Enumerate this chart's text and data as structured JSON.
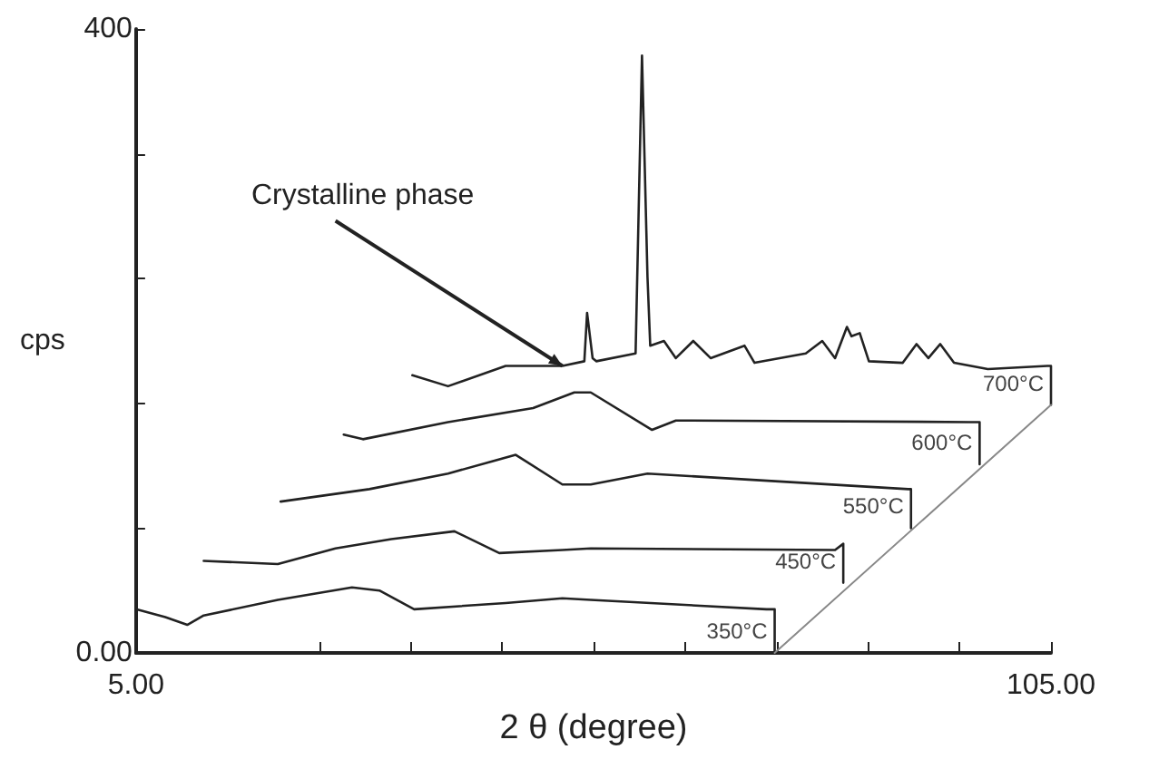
{
  "chart_data": {
    "type": "line",
    "xlabel": "2 θ (degree)",
    "ylabel": "cps",
    "xlim": [
      5,
      105
    ],
    "ylim": [
      0,
      400
    ],
    "xticks": [
      {
        "value": 5,
        "label": "5.00"
      },
      {
        "value": 25,
        "label": null
      },
      {
        "value": 35,
        "label": null
      },
      {
        "value": 45,
        "label": null
      },
      {
        "value": 55,
        "label": null
      },
      {
        "value": 65,
        "label": null
      },
      {
        "value": 75,
        "label": null
      },
      {
        "value": 85,
        "label": null
      },
      {
        "value": 95,
        "label": null
      },
      {
        "value": 105,
        "label": "105.00"
      }
    ],
    "yticks": [
      {
        "value": 0,
        "label": "0.00"
      },
      {
        "value": 80,
        "label": null
      },
      {
        "value": 160,
        "label": null
      },
      {
        "value": 240,
        "label": null
      },
      {
        "value": 320,
        "label": null
      },
      {
        "value": 400,
        "label": "400"
      }
    ],
    "grid": false,
    "legend": false,
    "marker": "none",
    "line_style": "solid",
    "series": [
      {
        "name": "350°C",
        "color": "#222222",
        "x": [
          5,
          8.2,
          10.6,
          12.4,
          20.5,
          28.6,
          31.6,
          35.4,
          45.4,
          51.6,
          54.7,
          73.9,
          74.8,
          74.8
        ],
        "values": [
          28,
          23,
          18,
          24,
          34,
          42,
          40,
          28,
          32,
          35,
          34,
          28,
          28,
          0
        ]
      },
      {
        "name": "450°C",
        "color": "#222222",
        "x": [
          12.4,
          20.5,
          26.8,
          32.9,
          39.8,
          44.7,
          51.6,
          54.7,
          81.4,
          82.3,
          82.3
        ],
        "values": [
          59,
          57,
          67,
          73,
          78,
          64,
          66,
          67,
          66,
          70,
          45
        ]
      },
      {
        "name": "550°C",
        "color": "#222222",
        "x": [
          20.8,
          30.5,
          39.1,
          46.5,
          51.6,
          54.7,
          60.9,
          89.4,
          89.7,
          89.7
        ],
        "values": [
          97,
          105,
          115,
          127,
          108,
          108,
          115,
          105,
          105,
          80
        ]
      },
      {
        "name": "600°C",
        "color": "#222222",
        "x": [
          27.7,
          29.8,
          39.1,
          48.4,
          52.9,
          54.7,
          61.4,
          64.0,
          96.2,
          97.2,
          97.2
        ],
        "values": [
          140,
          137,
          148,
          157,
          167,
          167,
          143,
          149,
          148,
          148,
          121
        ]
      },
      {
        "name": "700°C",
        "color": "#222222",
        "x": [
          35.2,
          39.1,
          45.4,
          51.6,
          54.0,
          54.3,
          54.9,
          55.3,
          59.6,
          60.3,
          60.9,
          61.2,
          62.7,
          64.0,
          65.9,
          67.8,
          71.5,
          72.6,
          78.2,
          80.0,
          81.4,
          82.7,
          83.2,
          84.1,
          85.1,
          88.8,
          90.3,
          91.6,
          92.9,
          94.4,
          98.1,
          104.6,
          105,
          105
        ],
        "values": [
          178,
          171,
          184,
          184,
          187,
          218,
          189,
          187,
          192,
          383,
          241,
          197,
          200,
          189,
          200,
          189,
          197,
          186,
          192,
          200,
          189,
          209,
          203,
          205,
          187,
          186,
          198,
          189,
          198,
          186,
          182,
          184,
          184,
          159
        ]
      },
      {
        "color": "#888888",
        "x": [
          74.8,
          105
        ],
        "values": [
          0,
          159
        ]
      }
    ],
    "annotations": [
      {
        "text": "Crystalline phase",
        "x": 51.6,
        "y": 184
      }
    ]
  }
}
